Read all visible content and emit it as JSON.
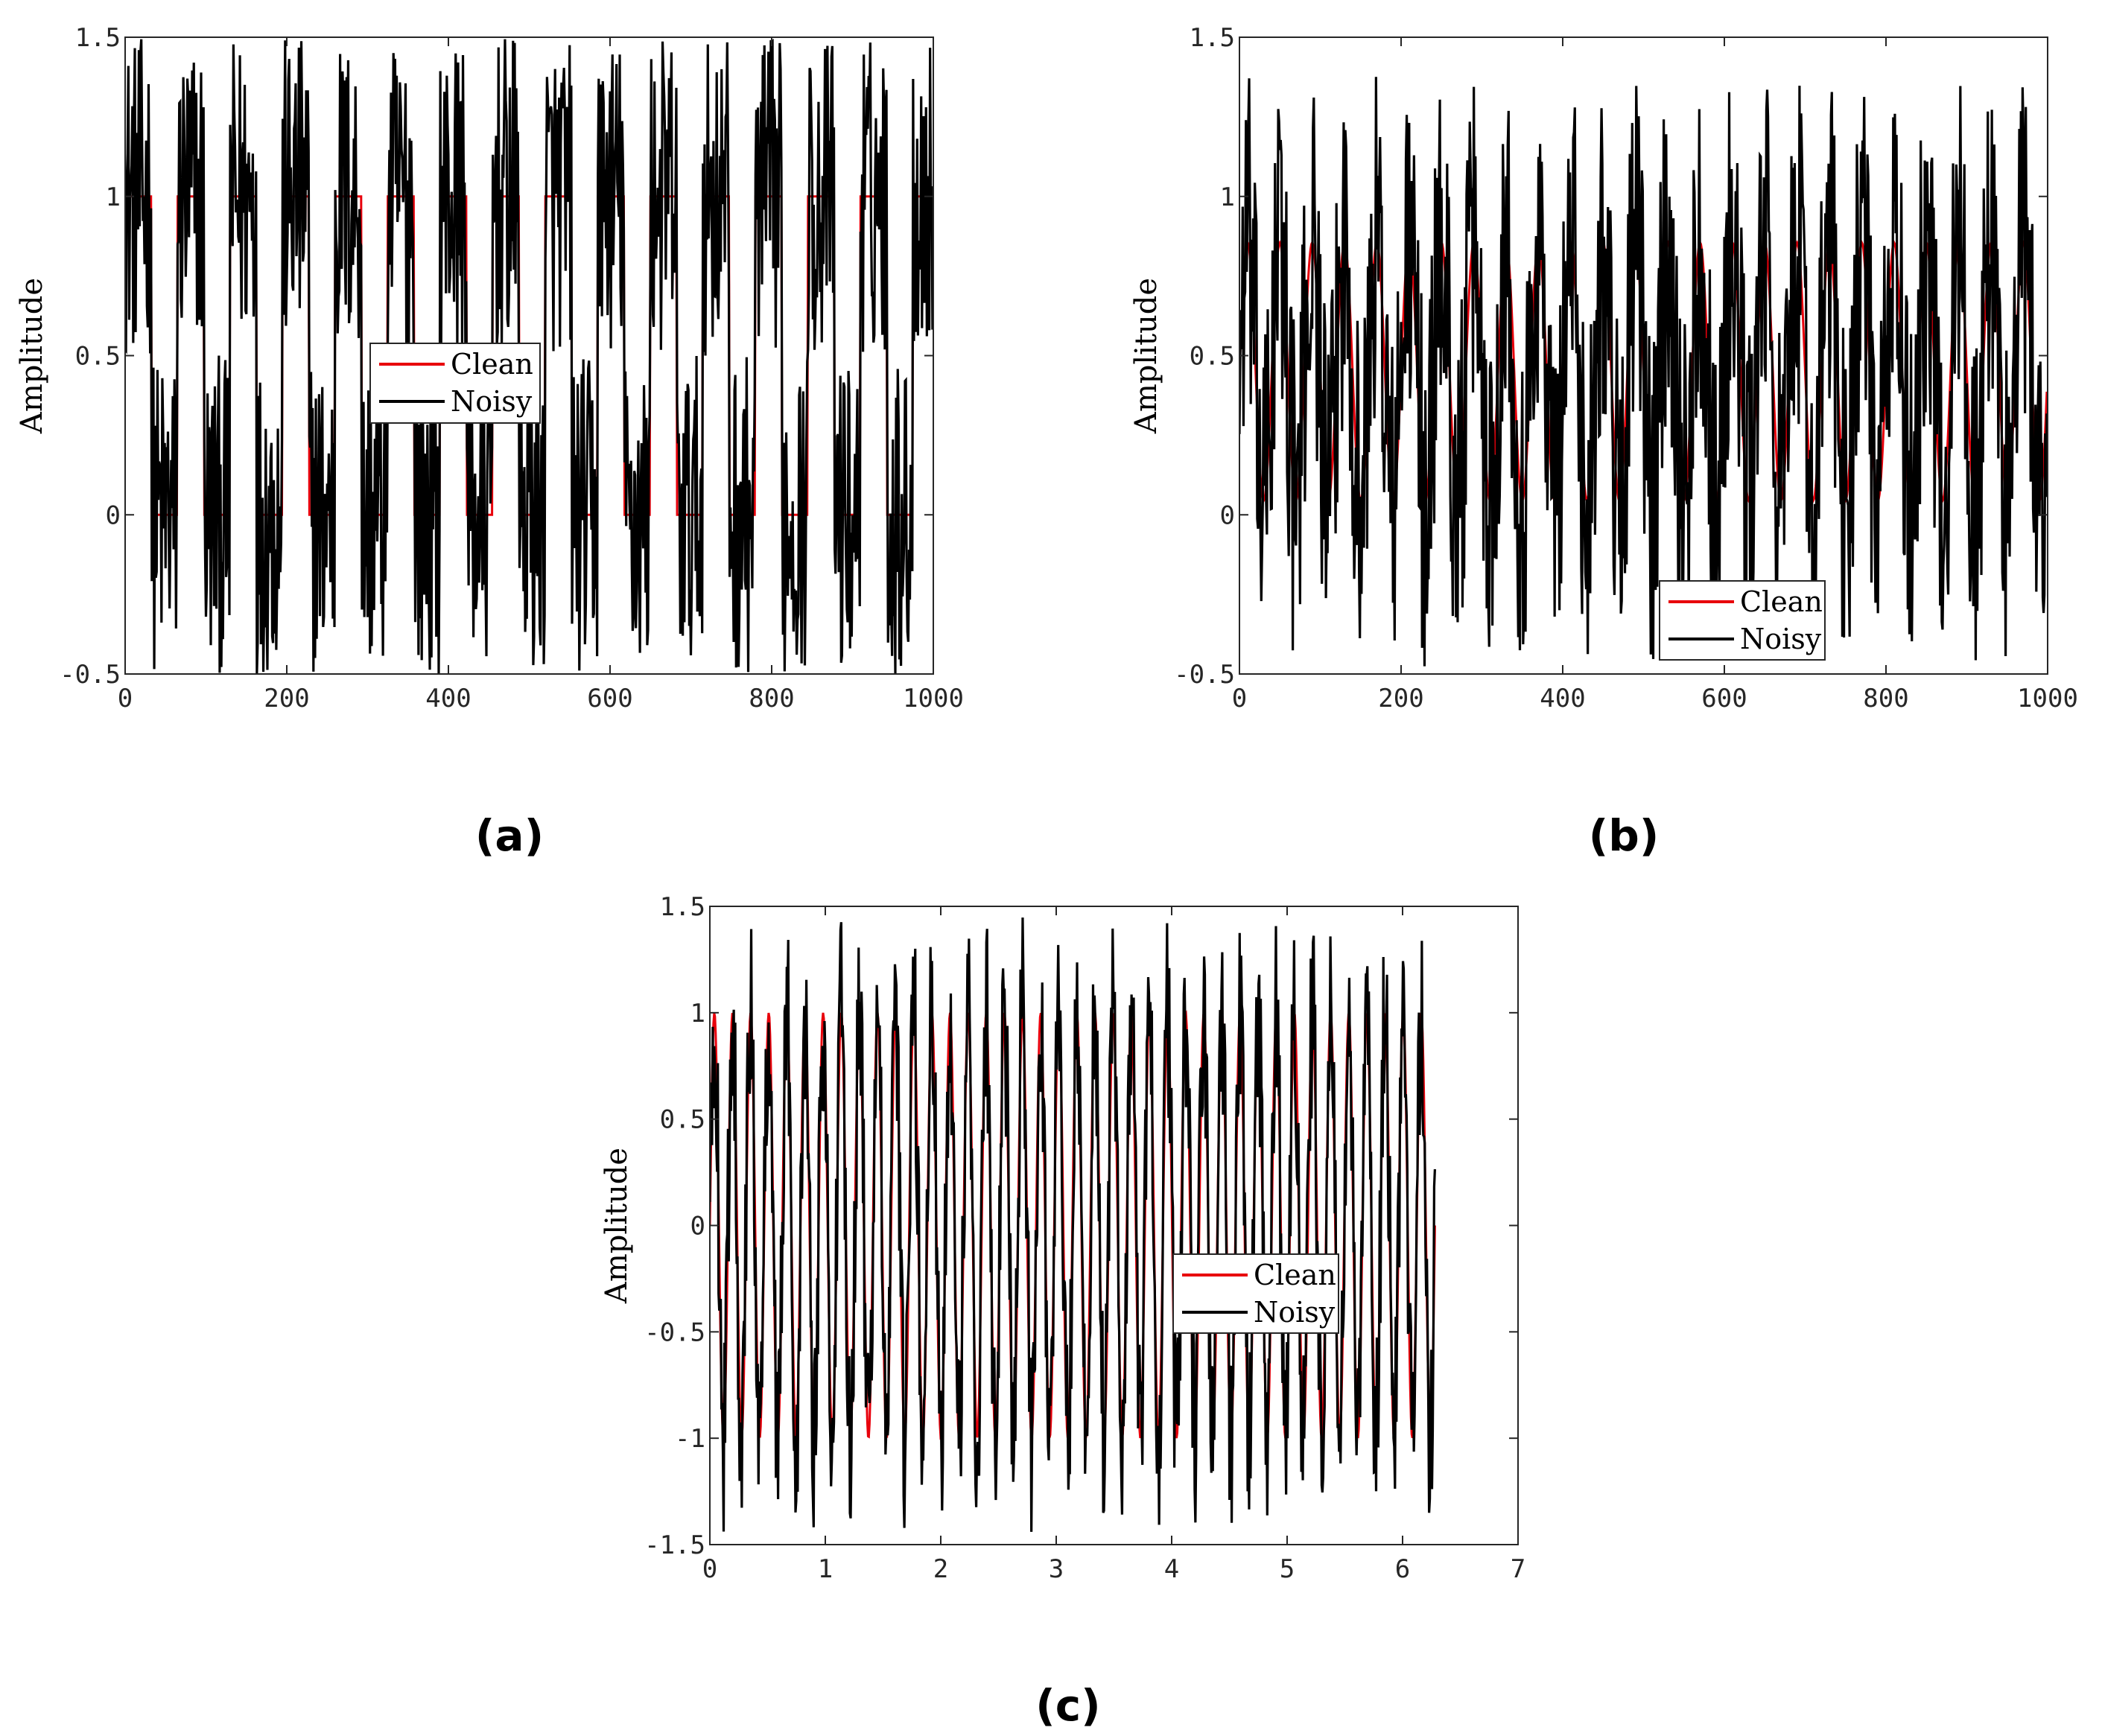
{
  "chart_data": [
    {
      "type": "line",
      "panel_label": "(a)",
      "ylabel": "Amplitude",
      "xlabel": "",
      "xlim": [
        0,
        1000
      ],
      "ylim": [
        -0.5,
        1.5
      ],
      "xticks": [
        0,
        200,
        400,
        600,
        800,
        1000
      ],
      "xtick_labels": [
        "0",
        "200",
        "400",
        "600",
        "800",
        "1000"
      ],
      "yticks": [
        -0.5,
        0,
        0.5,
        1,
        1.5
      ],
      "ytick_labels": [
        "-0.5",
        "0",
        "0.5",
        "1",
        "1.5"
      ],
      "grid": false,
      "legend_position": "center",
      "signal": "square",
      "clean_levels": [
        0,
        1
      ],
      "clean_period": 65,
      "n_points": 1000,
      "noise_amplitude": 0.5,
      "series": [
        {
          "name": "Clean",
          "color": "#e8000b"
        },
        {
          "name": "Noisy",
          "color": "#000000"
        }
      ]
    },
    {
      "type": "line",
      "panel_label": "(b)",
      "ylabel": "Amplitude",
      "xlabel": "",
      "xlim": [
        0,
        1000
      ],
      "ylim": [
        -0.5,
        1.5
      ],
      "xticks": [
        0,
        200,
        400,
        600,
        800,
        1000
      ],
      "xtick_labels": [
        "0",
        "200",
        "400",
        "600",
        "800",
        "1000"
      ],
      "yticks": [
        -0.5,
        0,
        0.5,
        1,
        1.5
      ],
      "ytick_labels": [
        "-0.5",
        "0",
        "0.5",
        "1",
        "1.5"
      ],
      "grid": false,
      "legend_position": "bottom-right",
      "signal": "sawtooth",
      "clean_range": [
        0,
        0.9
      ],
      "clean_period": 40,
      "n_points": 1000,
      "noise_amplitude": 0.55,
      "series": [
        {
          "name": "Clean",
          "color": "#e8000b"
        },
        {
          "name": "Noisy",
          "color": "#000000"
        }
      ]
    },
    {
      "type": "line",
      "panel_label": "(c)",
      "ylabel": "Amplitude",
      "xlabel": "",
      "xlim": [
        0,
        7
      ],
      "ylim": [
        -1.5,
        1.5
      ],
      "xticks": [
        0,
        1,
        2,
        3,
        4,
        5,
        6,
        7
      ],
      "xtick_labels": [
        "0",
        "1",
        "2",
        "3",
        "4",
        "5",
        "6",
        "7"
      ],
      "yticks": [
        -1.5,
        -1,
        -0.5,
        0,
        0.5,
        1,
        1.5
      ],
      "ytick_labels": [
        "-1.5",
        "-1",
        "-0.5",
        "0",
        "0.5",
        "1",
        "1.5"
      ],
      "grid": false,
      "legend_position": "center-right",
      "signal": "sine",
      "clean_amplitude": 1,
      "clean_x_range": [
        0,
        6.28
      ],
      "clean_cycles": 40,
      "n_points": 1000,
      "noise_amplitude": 0.45,
      "series": [
        {
          "name": "Clean",
          "color": "#e8000b"
        },
        {
          "name": "Noisy",
          "color": "#000000"
        }
      ]
    }
  ]
}
